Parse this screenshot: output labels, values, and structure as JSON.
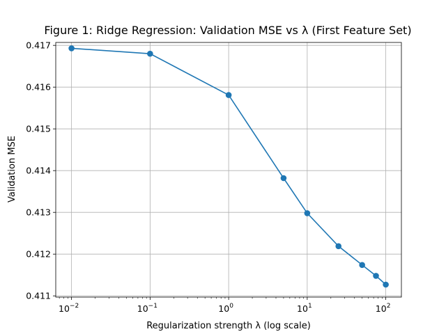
{
  "chart_data": {
    "type": "line",
    "title": "Figure 1: Ridge Regression: Validation MSE vs λ (First Feature Set)",
    "xlabel": "Regularization strength λ (log scale)",
    "ylabel": "Validation MSE",
    "xscale": "log",
    "xlim": [
      0.0063,
      158
    ],
    "ylim": [
      0.41097,
      0.41707
    ],
    "grid": true,
    "x_ticks": [
      {
        "value": 0.01,
        "base": "10",
        "exp": "−2"
      },
      {
        "value": 0.1,
        "base": "10",
        "exp": "−1"
      },
      {
        "value": 1,
        "base": "10",
        "exp": "0"
      },
      {
        "value": 10,
        "base": "10",
        "exp": "1"
      },
      {
        "value": 100,
        "base": "10",
        "exp": "2"
      }
    ],
    "y_ticks": [
      {
        "value": 0.411,
        "label": "0.411"
      },
      {
        "value": 0.412,
        "label": "0.412"
      },
      {
        "value": 0.413,
        "label": "0.413"
      },
      {
        "value": 0.414,
        "label": "0.414"
      },
      {
        "value": 0.415,
        "label": "0.415"
      },
      {
        "value": 0.416,
        "label": "0.416"
      },
      {
        "value": 0.417,
        "label": "0.417"
      }
    ],
    "series": [
      {
        "color": "#1f77b4",
        "marker": "circle",
        "x": [
          0.01,
          0.1,
          1,
          5,
          10,
          25,
          50,
          75,
          100
        ],
        "y": [
          0.41693,
          0.4168,
          0.41581,
          0.41382,
          0.41298,
          0.41219,
          0.41174,
          0.41148,
          0.41127
        ]
      }
    ]
  }
}
